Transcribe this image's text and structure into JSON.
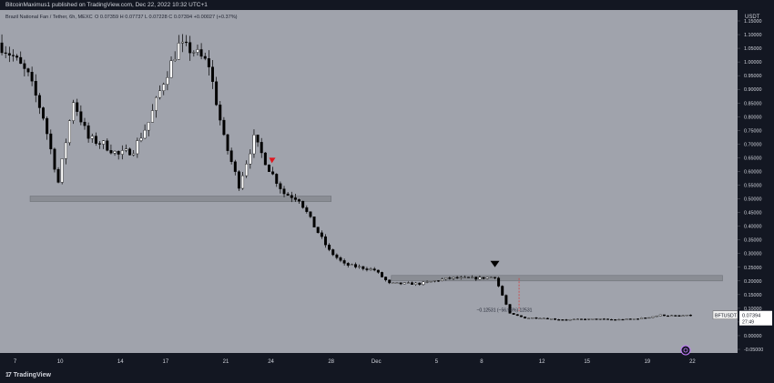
{
  "header": {
    "published_line": "BitcoinMaximus1 published on TradingView.com, Dec 22, 2022 10:32 UTC+1"
  },
  "legend": {
    "symbol_line": "Brazil National Fan / Tether, 6h, MEXC",
    "ohlc_line": "O 0.07359  H 0.07737  L 0.07228  C 0.07394  +0.00027 (+0.37%)"
  },
  "footer": {
    "brand": "TradingView"
  },
  "colors": {
    "pane_bg": "#a0a3ac",
    "axis_bg": "#131722",
    "candle_up": "#ffffff",
    "candle_down": "#000000",
    "zone": "#8a8d94",
    "arrow_red": "#e0161e",
    "line_red": "#d24040"
  },
  "chart_data": {
    "type": "candlestick",
    "axis_title": "USDT",
    "y_ticks": [
      "1.15000",
      "1.10000",
      "1.05000",
      "1.00000",
      "0.95000",
      "0.90000",
      "0.85000",
      "0.80000",
      "0.75000",
      "0.70000",
      "0.65000",
      "0.60000",
      "0.55000",
      "0.50000",
      "0.45000",
      "0.40000",
      "0.35000",
      "0.30000",
      "0.25000",
      "0.20000",
      "0.15000",
      "0.10000",
      "0.05000",
      "0.00000",
      "-0.05000"
    ],
    "ylim": [
      -0.05,
      1.15
    ],
    "x_ticks": [
      "7",
      "10",
      "14",
      "17",
      "21",
      "24",
      "28",
      "Dec",
      "5",
      "8",
      "12",
      "15",
      "19",
      "22"
    ],
    "x_tick_dates": [
      "2022-11-07",
      "2022-11-10",
      "2022-11-14",
      "2022-11-17",
      "2022-11-21",
      "2022-11-24",
      "2022-11-28",
      "2022-12-01",
      "2022-12-05",
      "2022-12-08",
      "2022-12-12",
      "2022-12-15",
      "2022-12-19",
      "2022-12-22"
    ],
    "x_range": [
      "2022-11-06",
      "2022-12-25"
    ],
    "grid": false,
    "close_path": [
      [
        "2022-11-06",
        1.07
      ],
      [
        "2022-11-07",
        1.02
      ],
      [
        "2022-11-08",
        0.95
      ],
      [
        "2022-11-09",
        0.8
      ],
      [
        "2022-11-10",
        0.56
      ],
      [
        "2022-11-11",
        0.86
      ],
      [
        "2022-11-12",
        0.72
      ],
      [
        "2022-11-13",
        0.7
      ],
      [
        "2022-11-14",
        0.66
      ],
      [
        "2022-11-15",
        0.68
      ],
      [
        "2022-11-16",
        0.78
      ],
      [
        "2022-11-17",
        0.93
      ],
      [
        "2022-11-18",
        1.06
      ],
      [
        "2022-11-19",
        1.04
      ],
      [
        "2022-11-20",
        0.99
      ],
      [
        "2022-11-21",
        0.72
      ],
      [
        "2022-11-22",
        0.55
      ],
      [
        "2022-11-23",
        0.72
      ],
      [
        "2022-11-24",
        0.61
      ],
      [
        "2022-11-25",
        0.52
      ],
      [
        "2022-11-26",
        0.5
      ],
      [
        "2022-11-27",
        0.4
      ],
      [
        "2022-11-28",
        0.31
      ],
      [
        "2022-11-29",
        0.26
      ],
      [
        "2022-11-30",
        0.25
      ],
      [
        "2022-12-01",
        0.24
      ],
      [
        "2022-12-02",
        0.19
      ],
      [
        "2022-12-03",
        0.19
      ],
      [
        "2022-12-04",
        0.19
      ],
      [
        "2022-12-05",
        0.2
      ],
      [
        "2022-12-06",
        0.21
      ],
      [
        "2022-12-07",
        0.21
      ],
      [
        "2022-12-08",
        0.21
      ],
      [
        "2022-12-09",
        0.215
      ],
      [
        "2022-12-10",
        0.08
      ],
      [
        "2022-12-11",
        0.065
      ],
      [
        "2022-12-12",
        0.065
      ],
      [
        "2022-12-13",
        0.06
      ],
      [
        "2022-12-14",
        0.058
      ],
      [
        "2022-12-15",
        0.06
      ],
      [
        "2022-12-16",
        0.06
      ],
      [
        "2022-12-17",
        0.058
      ],
      [
        "2022-12-18",
        0.06
      ],
      [
        "2022-12-19",
        0.065
      ],
      [
        "2022-12-20",
        0.075
      ],
      [
        "2022-12-21",
        0.072
      ],
      [
        "2022-12-22",
        0.0739
      ]
    ],
    "zones": [
      {
        "x0": "2022-11-08",
        "x1": "2022-11-28",
        "y0": 0.49,
        "y1": 0.51
      },
      {
        "x0": "2022-12-02",
        "x1": "2022-12-24",
        "y0": 0.2,
        "y1": 0.22
      }
    ],
    "markers": [
      {
        "type": "red-arrow",
        "x": "2022-11-24",
        "y": 0.64
      },
      {
        "type": "black-arrow",
        "x": "2022-12-09",
        "y": 0.26
      },
      {
        "type": "red-dashed-line",
        "x": "2022-12-10",
        "y0": 0.09,
        "y1": 0.21
      }
    ],
    "annotations": [
      {
        "text": "−0.12531 (−56.96%) 12531",
        "x": "2022-12-09",
        "y": 0.088
      }
    ],
    "last_price": {
      "symbol": "BFTUSDT",
      "value": "0.07394",
      "countdown": "27:49",
      "y": 0.07394
    }
  }
}
